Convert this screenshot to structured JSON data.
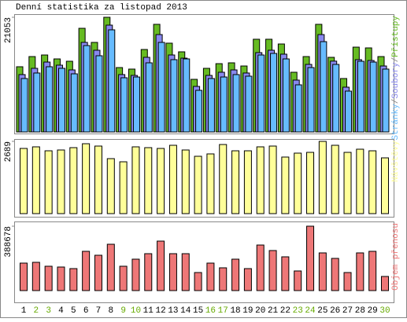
{
  "chart_data": {
    "type": "bar",
    "title": "Denní statistika za listopad 2013",
    "categories": [
      "1",
      "2",
      "3",
      "4",
      "5",
      "6",
      "7",
      "8",
      "9",
      "10",
      "11",
      "12",
      "13",
      "14",
      "15",
      "16",
      "17",
      "18",
      "19",
      "20",
      "21",
      "22",
      "23",
      "24",
      "25",
      "26",
      "27",
      "28",
      "29",
      "30"
    ],
    "weekends": [
      "2",
      "3",
      "9",
      "10",
      "16",
      "17",
      "23",
      "24",
      "30"
    ],
    "weekday_color": "#000000",
    "weekend_color": "#66aa00",
    "legend_separator": "/",
    "panels": [
      {
        "ylim": [
          0,
          21053
        ],
        "yticks": [
          21053
        ],
        "series": [
          {
            "name": "Přístupy",
            "color": "#66bb22",
            "values": [
              11970,
              13840,
              14130,
              13410,
              12980,
              19030,
              16440,
              21053,
              11820,
              11540,
              15140,
              19760,
              16300,
              14710,
              9660,
              11680,
              12540,
              12690,
              12110,
              17020,
              17020,
              16150,
              10960,
              13840,
              19760,
              13700,
              9810,
              15570,
              15430,
              13840
            ]
          },
          {
            "name": "Soubory",
            "color": "#8888ee",
            "values": [
              10530,
              11680,
              12830,
              12260,
              11390,
              16440,
              15000,
              19610,
              10530,
              10380,
              13700,
              17880,
              14130,
              13550,
              8360,
              10380,
              10960,
              11390,
              10820,
              14560,
              15000,
              14280,
              9520,
              12400,
              17880,
              13000,
              8220,
              13270,
              13120,
              12110
            ]
          },
          {
            "name": "Stránky",
            "color": "#66bbff",
            "values": [
              9810,
              10820,
              11970,
              11680,
              10670,
              15860,
              13990,
              18750,
              9950,
              10090,
              12690,
              16440,
              13270,
              13410,
              7640,
              9810,
              10090,
              10530,
              10240,
              14130,
              14420,
              13410,
              8650,
              11820,
              16580,
              12400,
              7500,
              12980,
              12830,
              11540
            ]
          }
        ]
      },
      {
        "ylim": [
          0,
          2689
        ],
        "yticks": [
          2689
        ],
        "series": [
          {
            "name": "Návštěvy",
            "color": "#ffff99",
            "values": [
              2426,
              2485,
              2338,
              2368,
              2455,
              2601,
              2514,
              2046,
              1929,
              2485,
              2455,
              2426,
              2543,
              2368,
              2134,
              2222,
              2572,
              2338,
              2338,
              2485,
              2514,
              2105,
              2251,
              2280,
              2689,
              2543,
              2280,
              2397,
              2338,
              2075
            ]
          }
        ]
      },
      {
        "ylim": [
          0,
          388678
        ],
        "yticks": [
          388678
        ],
        "series": [
          {
            "name": "Objem přenosu",
            "color": "#ee7777",
            "values": [
              165900,
              170640,
              146940,
              142200,
              132720,
              237000,
              213300,
              279660,
              146940,
              189600,
              222780,
              298620,
              222780,
              222780,
              109020,
              165900,
              137460,
              189600,
              132720,
              274920,
              241740,
              203820,
              118500,
              388678,
              227520,
              194340,
              109020,
              227520,
              237000,
              85320
            ]
          }
        ]
      }
    ]
  }
}
